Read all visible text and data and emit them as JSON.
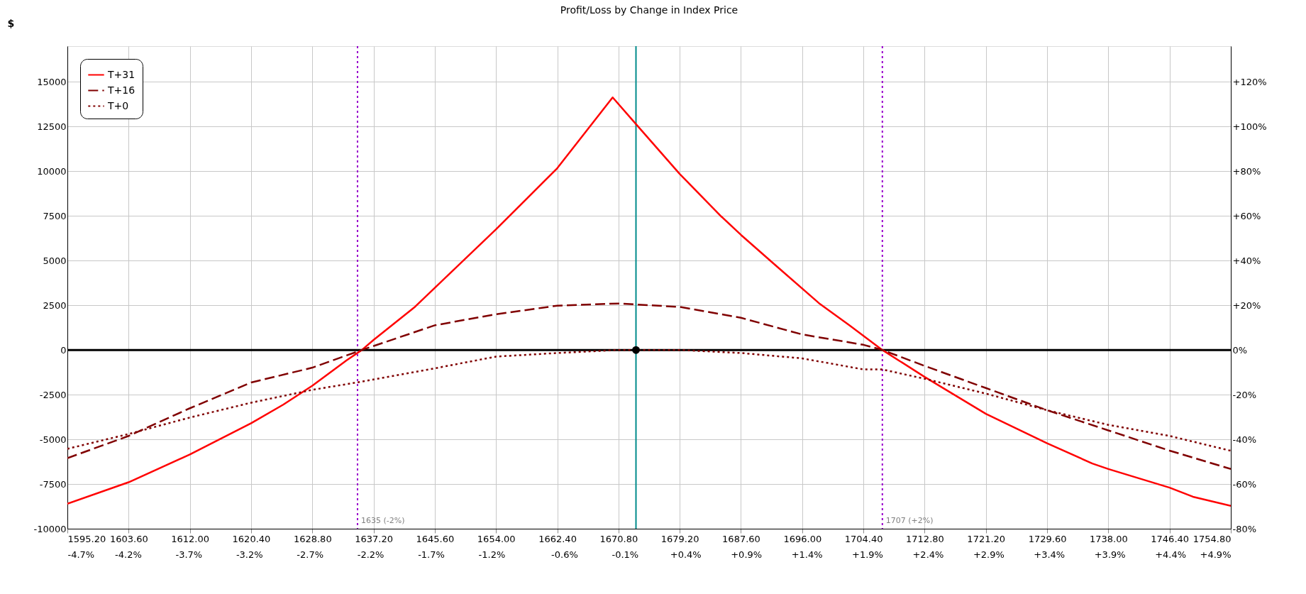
{
  "chart_data": {
    "type": "line",
    "title": "Profit/Loss by Change in Index Price",
    "ylabel": "$",
    "xlim": [
      1595.2,
      1754.8
    ],
    "xticks": [
      {
        "value": 1595.2,
        "label": "1595.20"
      },
      {
        "value": 1603.6,
        "label": "1603.60"
      },
      {
        "value": 1612.0,
        "label": "1612.00"
      },
      {
        "value": 1620.4,
        "label": "1620.40"
      },
      {
        "value": 1628.8,
        "label": "1628.80"
      },
      {
        "value": 1637.2,
        "label": "1637.20"
      },
      {
        "value": 1645.6,
        "label": "1645.60"
      },
      {
        "value": 1654.0,
        "label": "1654.00"
      },
      {
        "value": 1662.4,
        "label": "1662.40"
      },
      {
        "value": 1670.8,
        "label": "1670.80"
      },
      {
        "value": 1679.2,
        "label": "1679.20"
      },
      {
        "value": 1687.6,
        "label": "1687.60"
      },
      {
        "value": 1696.0,
        "label": "1696.00"
      },
      {
        "value": 1704.4,
        "label": "1704.40"
      },
      {
        "value": 1712.8,
        "label": "1712.80"
      },
      {
        "value": 1721.2,
        "label": "1721.20"
      },
      {
        "value": 1729.6,
        "label": "1729.60"
      },
      {
        "value": 1738.0,
        "label": "1738.00"
      },
      {
        "value": 1746.4,
        "label": "1746.40"
      },
      {
        "value": 1754.8,
        "label": "1754.80"
      }
    ],
    "x2lim": [
      -4.7,
      4.9
    ],
    "x2ticks": [
      {
        "value": -4.7,
        "label": "-4.7%"
      },
      {
        "value": -4.2,
        "label": "-4.2%"
      },
      {
        "value": -3.7,
        "label": "-3.7%"
      },
      {
        "value": -3.2,
        "label": "-3.2%"
      },
      {
        "value": -2.7,
        "label": "-2.7%"
      },
      {
        "value": -2.2,
        "label": "-2.2%"
      },
      {
        "value": -1.7,
        "label": "-1.7%"
      },
      {
        "value": -1.2,
        "label": "-1.2%"
      },
      {
        "value": -0.6,
        "label": "-0.6%"
      },
      {
        "value": -0.1,
        "label": "-0.1%"
      },
      {
        "value": 0.4,
        "label": "+0.4%"
      },
      {
        "value": 0.9,
        "label": "+0.9%"
      },
      {
        "value": 1.4,
        "label": "+1.4%"
      },
      {
        "value": 1.9,
        "label": "+1.9%"
      },
      {
        "value": 2.4,
        "label": "+2.4%"
      },
      {
        "value": 2.9,
        "label": "+2.9%"
      },
      {
        "value": 3.4,
        "label": "+3.4%"
      },
      {
        "value": 3.9,
        "label": "+3.9%"
      },
      {
        "value": 4.4,
        "label": "+4.4%"
      },
      {
        "value": 4.9,
        "label": "+4.9%"
      }
    ],
    "ylim": [
      -10000,
      17000
    ],
    "yticks": [
      -10000,
      -7500,
      -5000,
      -2500,
      0,
      2500,
      5000,
      7500,
      10000,
      12500,
      15000
    ],
    "y2lim": [
      -80,
      136
    ],
    "y2ticks": [
      {
        "value": -80,
        "label": "-80%"
      },
      {
        "value": -60,
        "label": "-60%"
      },
      {
        "value": -40,
        "label": "-40%"
      },
      {
        "value": -20,
        "label": "-20%"
      },
      {
        "value": 0,
        "label": "0%"
      },
      {
        "value": 20,
        "label": "+20%"
      },
      {
        "value": 40,
        "label": "+40%"
      },
      {
        "value": 60,
        "label": "+60%"
      },
      {
        "value": 80,
        "label": "+80%"
      },
      {
        "value": 100,
        "label": "+100%"
      },
      {
        "value": 120,
        "label": "+120%"
      }
    ],
    "grid": true,
    "legend": "top left",
    "series": [
      {
        "name": "T+31",
        "color": "#ff0000",
        "line_style": "solid",
        "x": [
          1595.2,
          1603.6,
          1612.0,
          1620.4,
          1624.8,
          1628.8,
          1633.5,
          1635.6,
          1637.2,
          1642.9,
          1654.0,
          1658.3,
          1662.4,
          1670.0,
          1673.2,
          1679.2,
          1684.9,
          1687.6,
          1692.2,
          1698.3,
          1702.5,
          1707.0,
          1712.8,
          1721.2,
          1729.6,
          1735.8,
          1738.0,
          1746.4,
          1749.6,
          1754.8
        ],
        "values": [
          -8600,
          -7400,
          -5850,
          -4100,
          -3060,
          -2000,
          -580,
          0,
          560,
          2420,
          6750,
          8500,
          10170,
          14130,
          12640,
          9850,
          7470,
          6440,
          4790,
          2620,
          1380,
          0,
          -1510,
          -3570,
          -5220,
          -6350,
          -6660,
          -7700,
          -8210,
          -8720
        ]
      },
      {
        "name": "T+16",
        "color": "#800000",
        "line_style": "dashed",
        "x": [
          1595.2,
          1603.6,
          1612.0,
          1620.4,
          1628.8,
          1635.6,
          1645.6,
          1654.0,
          1662.4,
          1670.8,
          1679.2,
          1687.6,
          1696.0,
          1704.4,
          1707.0,
          1712.8,
          1721.2,
          1729.6,
          1738.0,
          1746.4,
          1754.8
        ],
        "values": [
          -6050,
          -4810,
          -3260,
          -1820,
          -990,
          0,
          1380,
          2000,
          2480,
          2600,
          2410,
          1800,
          870,
          290,
          0,
          -890,
          -2130,
          -3370,
          -4500,
          -5630,
          -6660
        ]
      },
      {
        "name": "T+0",
        "color": "#800000",
        "line_style": "dotted",
        "x": [
          1595.2,
          1603.6,
          1612.0,
          1620.4,
          1628.8,
          1635.6,
          1644.8,
          1654.0,
          1662.4,
          1670.8,
          1679.2,
          1687.6,
          1696.0,
          1704.4,
          1707.0,
          1712.8,
          1721.2,
          1729.6,
          1738.0,
          1746.4,
          1754.8
        ],
        "values": [
          -5530,
          -4700,
          -3780,
          -2950,
          -2230,
          -1770,
          -1090,
          -370,
          -170,
          0,
          0,
          -170,
          -470,
          -1090,
          -1090,
          -1610,
          -2440,
          -3370,
          -4190,
          -4810,
          -5640
        ]
      },
      {
        "type": "scatter",
        "color": "#000000",
        "marker": "circle",
        "x": [
          1673.2
        ],
        "values": [
          0
        ]
      }
    ],
    "ref_lines": [
      {
        "axis": "y",
        "value": 0,
        "color": "#000000",
        "line_style": "solid"
      },
      {
        "axis": "x",
        "value": 1635,
        "label": "1635 (-2%)",
        "color": "#9900cc",
        "line_style": "dotted"
      },
      {
        "axis": "x",
        "value": 1707,
        "label": "1707 (+2%)",
        "color": "#9900cc",
        "line_style": "dotted"
      },
      {
        "axis": "x",
        "value": 1673.2,
        "color": "#008b8b",
        "line_style": "solid"
      }
    ]
  }
}
